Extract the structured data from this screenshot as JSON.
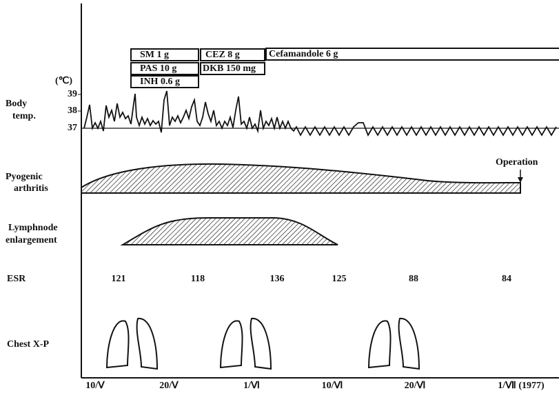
{
  "drugs": [
    {
      "label": "SM 1 g"
    },
    {
      "label": "PAS 10 g"
    },
    {
      "label": "INH 0.6 g"
    },
    {
      "label": "CEZ 8 g"
    },
    {
      "label": "DKB 150 mg"
    },
    {
      "label": "Cefamandole 6 g"
    }
  ],
  "body_temp": {
    "label": [
      "Body",
      "temp."
    ],
    "unit": "(℃)",
    "ticks": [
      "39",
      "38",
      "37"
    ]
  },
  "pyogenic_arthritis": {
    "label": [
      "Pyogenic",
      "arthritis"
    ],
    "annotation": "Operation"
  },
  "lymphnode": {
    "label": [
      "Lymphnode",
      "enlargement"
    ]
  },
  "esr": {
    "label": "ESR",
    "values": [
      "121",
      "118",
      "136",
      "125",
      "88",
      "84"
    ]
  },
  "chest_xp": {
    "label": "Chest X-P"
  },
  "x_axis": {
    "labels": [
      "10/Ⅴ",
      "20/Ⅴ",
      "1/Ⅵ",
      "10/Ⅵ",
      "20/Ⅵ",
      "1/Ⅶ (1977)"
    ]
  }
}
